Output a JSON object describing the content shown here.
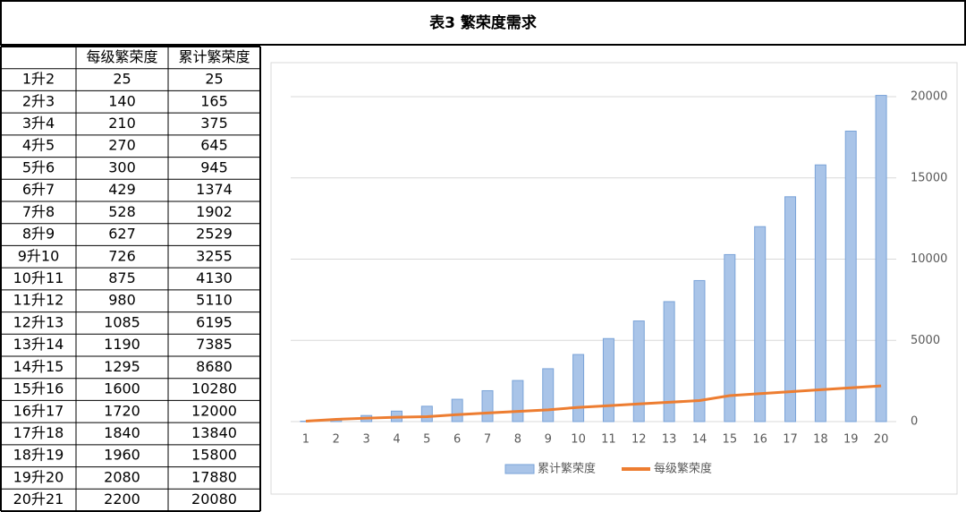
{
  "title": "表3 繁荣度需求",
  "table": {
    "row_labels": [
      "1升2",
      "2升3",
      "3升4",
      "4升5",
      "5升6",
      "6升7",
      "7升8",
      "8升9",
      "9升10",
      "10升11",
      "11升12",
      "12升13",
      "13升14",
      "14升15",
      "15升16",
      "16升17",
      "17升18",
      "18升19",
      "19升20",
      "20升21"
    ]
  },
  "chart_data": {
    "type": "combo",
    "categories": [
      "1",
      "2",
      "3",
      "4",
      "5",
      "6",
      "7",
      "8",
      "9",
      "10",
      "11",
      "12",
      "13",
      "14",
      "15",
      "16",
      "17",
      "18",
      "19",
      "20"
    ],
    "series": [
      {
        "name": "累计繁荣度",
        "type": "bar",
        "color": "#a9c4e8",
        "values": [
          25,
          165,
          375,
          645,
          945,
          1374,
          1902,
          2529,
          3255,
          4130,
          5110,
          6195,
          7385,
          8680,
          10280,
          12000,
          13840,
          15800,
          17880,
          20080
        ]
      },
      {
        "name": "每级繁荣度",
        "type": "line",
        "color": "#ed7d31",
        "values": [
          25,
          140,
          210,
          270,
          300,
          429,
          528,
          627,
          726,
          875,
          980,
          1085,
          1190,
          1295,
          1600,
          1720,
          1840,
          1960,
          2080,
          2200
        ]
      }
    ],
    "ylim": [
      0,
      20000
    ],
    "yticks": [
      0,
      5000,
      10000,
      15000,
      20000
    ],
    "grid": true,
    "legend": "bottom"
  }
}
